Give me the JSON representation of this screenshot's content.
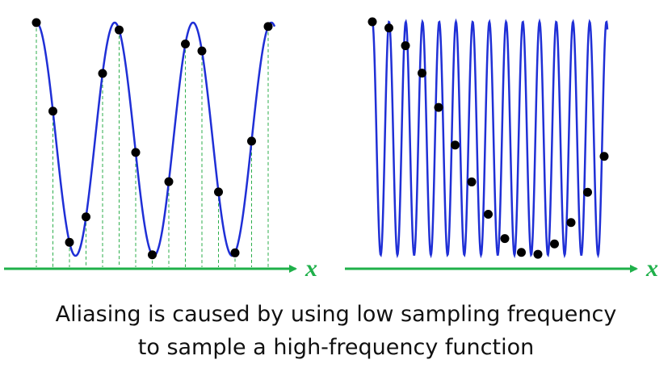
{
  "colors": {
    "wave": "#1f2fd6",
    "axis": "#1fb04a",
    "sample_line": "#2cae4b",
    "dot": "#000000",
    "text": "#111111"
  },
  "left_panel": {
    "axis_label": "x",
    "wave_cycles": 3,
    "sample_count": 15
  },
  "right_panel": {
    "axis_label": "x",
    "wave_cycles": 14,
    "sample_count": 15
  },
  "caption": {
    "line1": "Aliasing is caused by using low sampling frequency",
    "line2": "to sample a high-frequency function"
  }
}
